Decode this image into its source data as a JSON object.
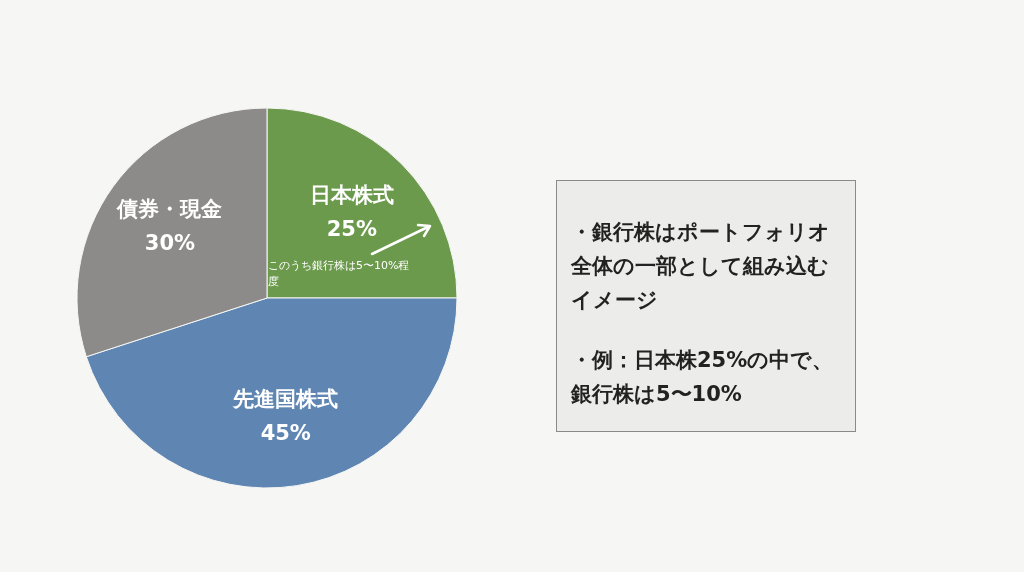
{
  "chart_data": {
    "type": "pie",
    "categories": [
      "日本株式",
      "先進国株式",
      "債券・現金"
    ],
    "values": [
      25,
      45,
      30
    ],
    "value_labels": [
      "25%",
      "45%",
      "30%"
    ],
    "colors": [
      "#6b9a4c",
      "#5f86b3",
      "#8d8b89"
    ],
    "legend": false,
    "annotations": [
      "このうち銀行株は5〜10%程度",
      "・銀行株はポートフォリオ全体の一部として組み込むイメージ",
      "・例：日本株25%の中で、銀行株は5〜10%"
    ]
  }
}
